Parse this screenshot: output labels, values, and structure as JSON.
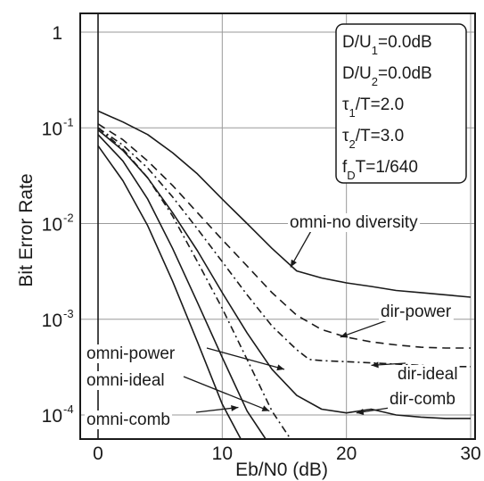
{
  "chart_data": {
    "type": "line",
    "xlabel": "Eb/N0 (dB)",
    "ylabel": "Bit Error Rate",
    "xlim": [
      0,
      30
    ],
    "ylim": [
      6.5e-05,
      1
    ],
    "yscale": "log",
    "grid": true,
    "x_ticks": [
      {
        "value": 0,
        "label": "0"
      },
      {
        "value": 10,
        "label": "10"
      },
      {
        "value": 20,
        "label": "20"
      },
      {
        "value": 30,
        "label": "30"
      }
    ],
    "y_ticks": [
      {
        "value": 1,
        "base": "1",
        "exp": ""
      },
      {
        "value": 0.1,
        "base": "10",
        "exp": "-1"
      },
      {
        "value": 0.01,
        "base": "10",
        "exp": "-2"
      },
      {
        "value": 0.001,
        "base": "10",
        "exp": "-3"
      },
      {
        "value": 0.0001,
        "base": "10",
        "exp": "-4"
      }
    ],
    "legend_box": {
      "placement": "top-right",
      "lines": [
        "D/U1=0.0dB",
        "D/U2=0.0dB",
        "τ1/T=2.0",
        "τ2/T=3.0",
        "fDT=1/640"
      ]
    },
    "series": [
      {
        "name": "omni-no diversity",
        "dash": "solid",
        "x": [
          0,
          2,
          4,
          6,
          8,
          10,
          12,
          14,
          16,
          18,
          20,
          22,
          24,
          26,
          28,
          30
        ],
        "y": [
          0.15,
          0.115,
          0.085,
          0.055,
          0.033,
          0.018,
          0.01,
          0.0055,
          0.0032,
          0.0027,
          0.0024,
          0.0022,
          0.002,
          0.0019,
          0.0018,
          0.0017
        ]
      },
      {
        "name": "dir-power",
        "dash": "dashed",
        "x": [
          0,
          2,
          4,
          6,
          8,
          10,
          12,
          14,
          16,
          18,
          20,
          22,
          24,
          26,
          28,
          30
        ],
        "y": [
          0.11,
          0.075,
          0.045,
          0.025,
          0.013,
          0.0068,
          0.0036,
          0.0019,
          0.0011,
          0.00078,
          0.00065,
          0.00058,
          0.00054,
          0.00051,
          0.0005,
          0.0005
        ]
      },
      {
        "name": "dir-ideal",
        "dash": "dashdot",
        "x": [
          0,
          2,
          4,
          6,
          8,
          10,
          12,
          14,
          16,
          17,
          18,
          20,
          22,
          24,
          26,
          28,
          30
        ],
        "y": [
          0.1,
          0.066,
          0.038,
          0.019,
          0.0088,
          0.004,
          0.0018,
          0.00085,
          0.00048,
          0.00038,
          0.00037,
          0.00036,
          0.00035,
          0.00034,
          0.00033,
          0.00032,
          0.00032
        ]
      },
      {
        "name": "omni-power",
        "dash": "dashdot",
        "x": [
          0,
          2,
          4,
          6,
          8,
          10,
          12,
          14,
          15.5
        ],
        "y": [
          0.1,
          0.06,
          0.03,
          0.012,
          0.004,
          0.0013,
          0.00038,
          0.00011,
          5e-05
        ]
      },
      {
        "name": "dir-comb",
        "dash": "solid",
        "x": [
          0,
          2,
          4,
          6,
          8,
          10,
          12,
          14,
          16,
          18,
          20,
          22,
          24,
          26,
          28,
          30
        ],
        "y": [
          0.095,
          0.058,
          0.03,
          0.013,
          0.0052,
          0.0019,
          0.00072,
          0.0003,
          0.00016,
          0.000115,
          0.000105,
          0.000115,
          0.0001,
          9.5e-05,
          9.2e-05,
          9.2e-05
        ]
      },
      {
        "name": "omni-ideal",
        "dash": "solid",
        "x": [
          0,
          2,
          4,
          6,
          8,
          10,
          12,
          13.5
        ],
        "y": [
          0.085,
          0.045,
          0.018,
          0.0055,
          0.0015,
          0.0004,
          0.00011,
          5e-05
        ]
      },
      {
        "name": "omni-comb",
        "dash": "solid",
        "x": [
          0,
          2,
          4,
          6,
          8,
          10,
          11.5
        ],
        "y": [
          0.065,
          0.028,
          0.0095,
          0.0025,
          0.00058,
          0.00013,
          5e-05
        ]
      }
    ],
    "annotations": [
      {
        "label": "omni-no diversity",
        "target": [
          15.5,
          0.0035
        ]
      },
      {
        "label": "dir-power",
        "target": [
          19.5,
          0.00065
        ]
      },
      {
        "label": "omni-power",
        "target": [
          15,
          0.0003
        ]
      },
      {
        "label": "dir-ideal",
        "target": [
          22,
          0.00033
        ]
      },
      {
        "label": "omni-ideal",
        "target": [
          13.8,
          0.00011
        ]
      },
      {
        "label": "dir-comb",
        "target": [
          20.8,
          0.000105
        ]
      },
      {
        "label": "omni-comb",
        "target": [
          11.3,
          0.00012
        ]
      }
    ]
  }
}
